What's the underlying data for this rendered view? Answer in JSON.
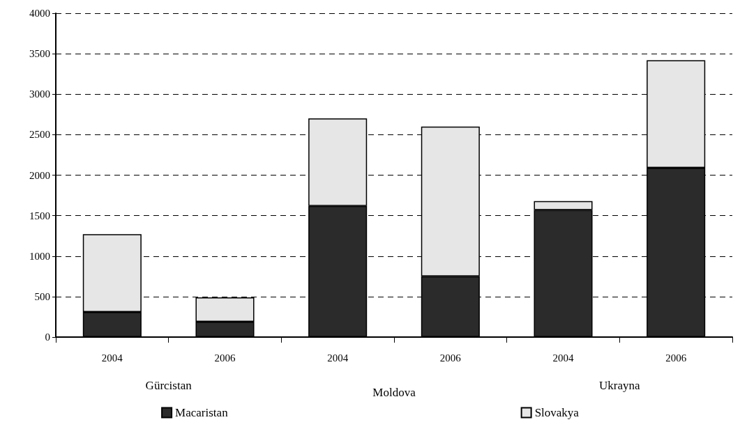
{
  "chart_data": {
    "type": "bar",
    "stacked": true,
    "categories": [
      "2004",
      "2006",
      "2004",
      "2006",
      "2004",
      "2006"
    ],
    "annotations": [
      "Gürcistan",
      "Moldova",
      "Ukrayna"
    ],
    "series": [
      {
        "name": "Macaristan",
        "color": "#2b2b2b",
        "values": [
          310,
          190,
          1620,
          750,
          1570,
          2090
        ]
      },
      {
        "name": "Slovakya",
        "color": "#e6e6e6",
        "values": [
          960,
          300,
          1080,
          1850,
          110,
          1330
        ]
      }
    ],
    "ylim": [
      0,
      4000
    ],
    "yticks": [
      0,
      500,
      1000,
      1500,
      2000,
      2500,
      3000,
      3500,
      4000
    ],
    "grid": "y",
    "legend": "bottom"
  }
}
